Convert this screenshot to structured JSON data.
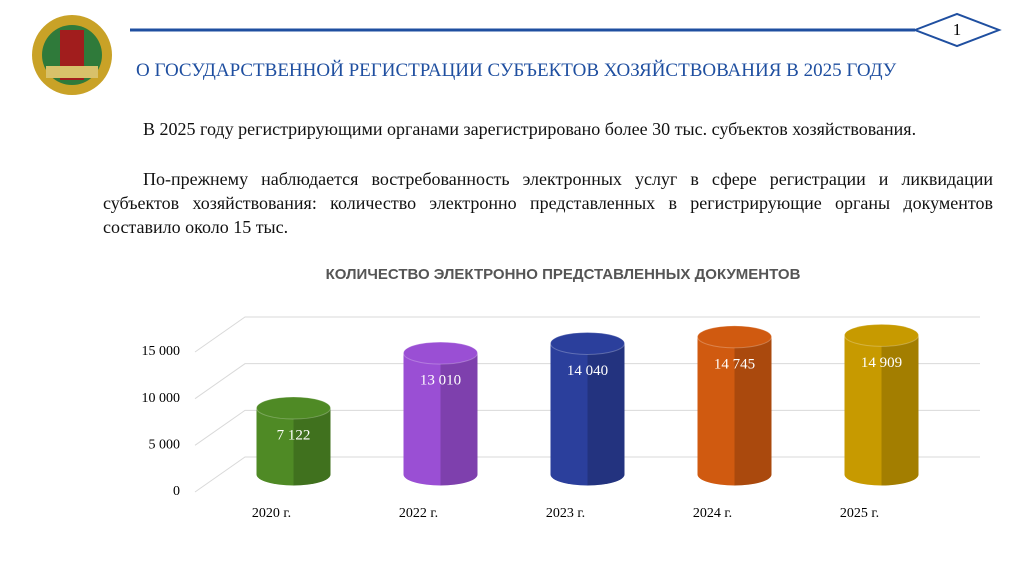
{
  "header": {
    "page_number": "1",
    "title": "О ГОСУДАРСТВЕННОЙ РЕГИСТРАЦИИ СУБЪЕКТОВ ХОЗЯЙСТВОВАНИЯ В 2025 ГОДУ"
  },
  "paragraphs": [
    "В 2025 году регистрирующими органами зарегистрировано более 30 тыс. субъектов хозяйствования.",
    "По-прежнему наблюдается востребованность электронных услуг в сфере регистрации и ликвидации субъектов хозяйствования: количество электронно представленных в регистрирующие органы документов составило около 15 тыс."
  ],
  "chart_data": {
    "type": "bar",
    "title": "КОЛИЧЕСТВО ЭЛЕКТРОННО ПРЕДСТАВЛЕННЫХ ДОКУМЕНТОВ",
    "categories": [
      "2020 г.",
      "2022 г.",
      "2023 г.",
      "2024 г.",
      "2025 г."
    ],
    "values": [
      7122,
      13010,
      14040,
      14745,
      14909
    ],
    "value_labels": [
      "7 122",
      "13 010",
      "14 040",
      "14 745",
      "14 909"
    ],
    "colors": [
      "#4f8a25",
      "#9a4fd4",
      "#2b3f9c",
      "#d05a10",
      "#c79a00"
    ],
    "ylim": [
      0,
      15000
    ],
    "yticks": [
      0,
      {
        "value": 5000,
        "label": "5 000"
      },
      {
        "value": 10000,
        "label": "10 000"
      },
      {
        "value": 15000,
        "label": "15 000"
      }
    ],
    "grid": true
  }
}
